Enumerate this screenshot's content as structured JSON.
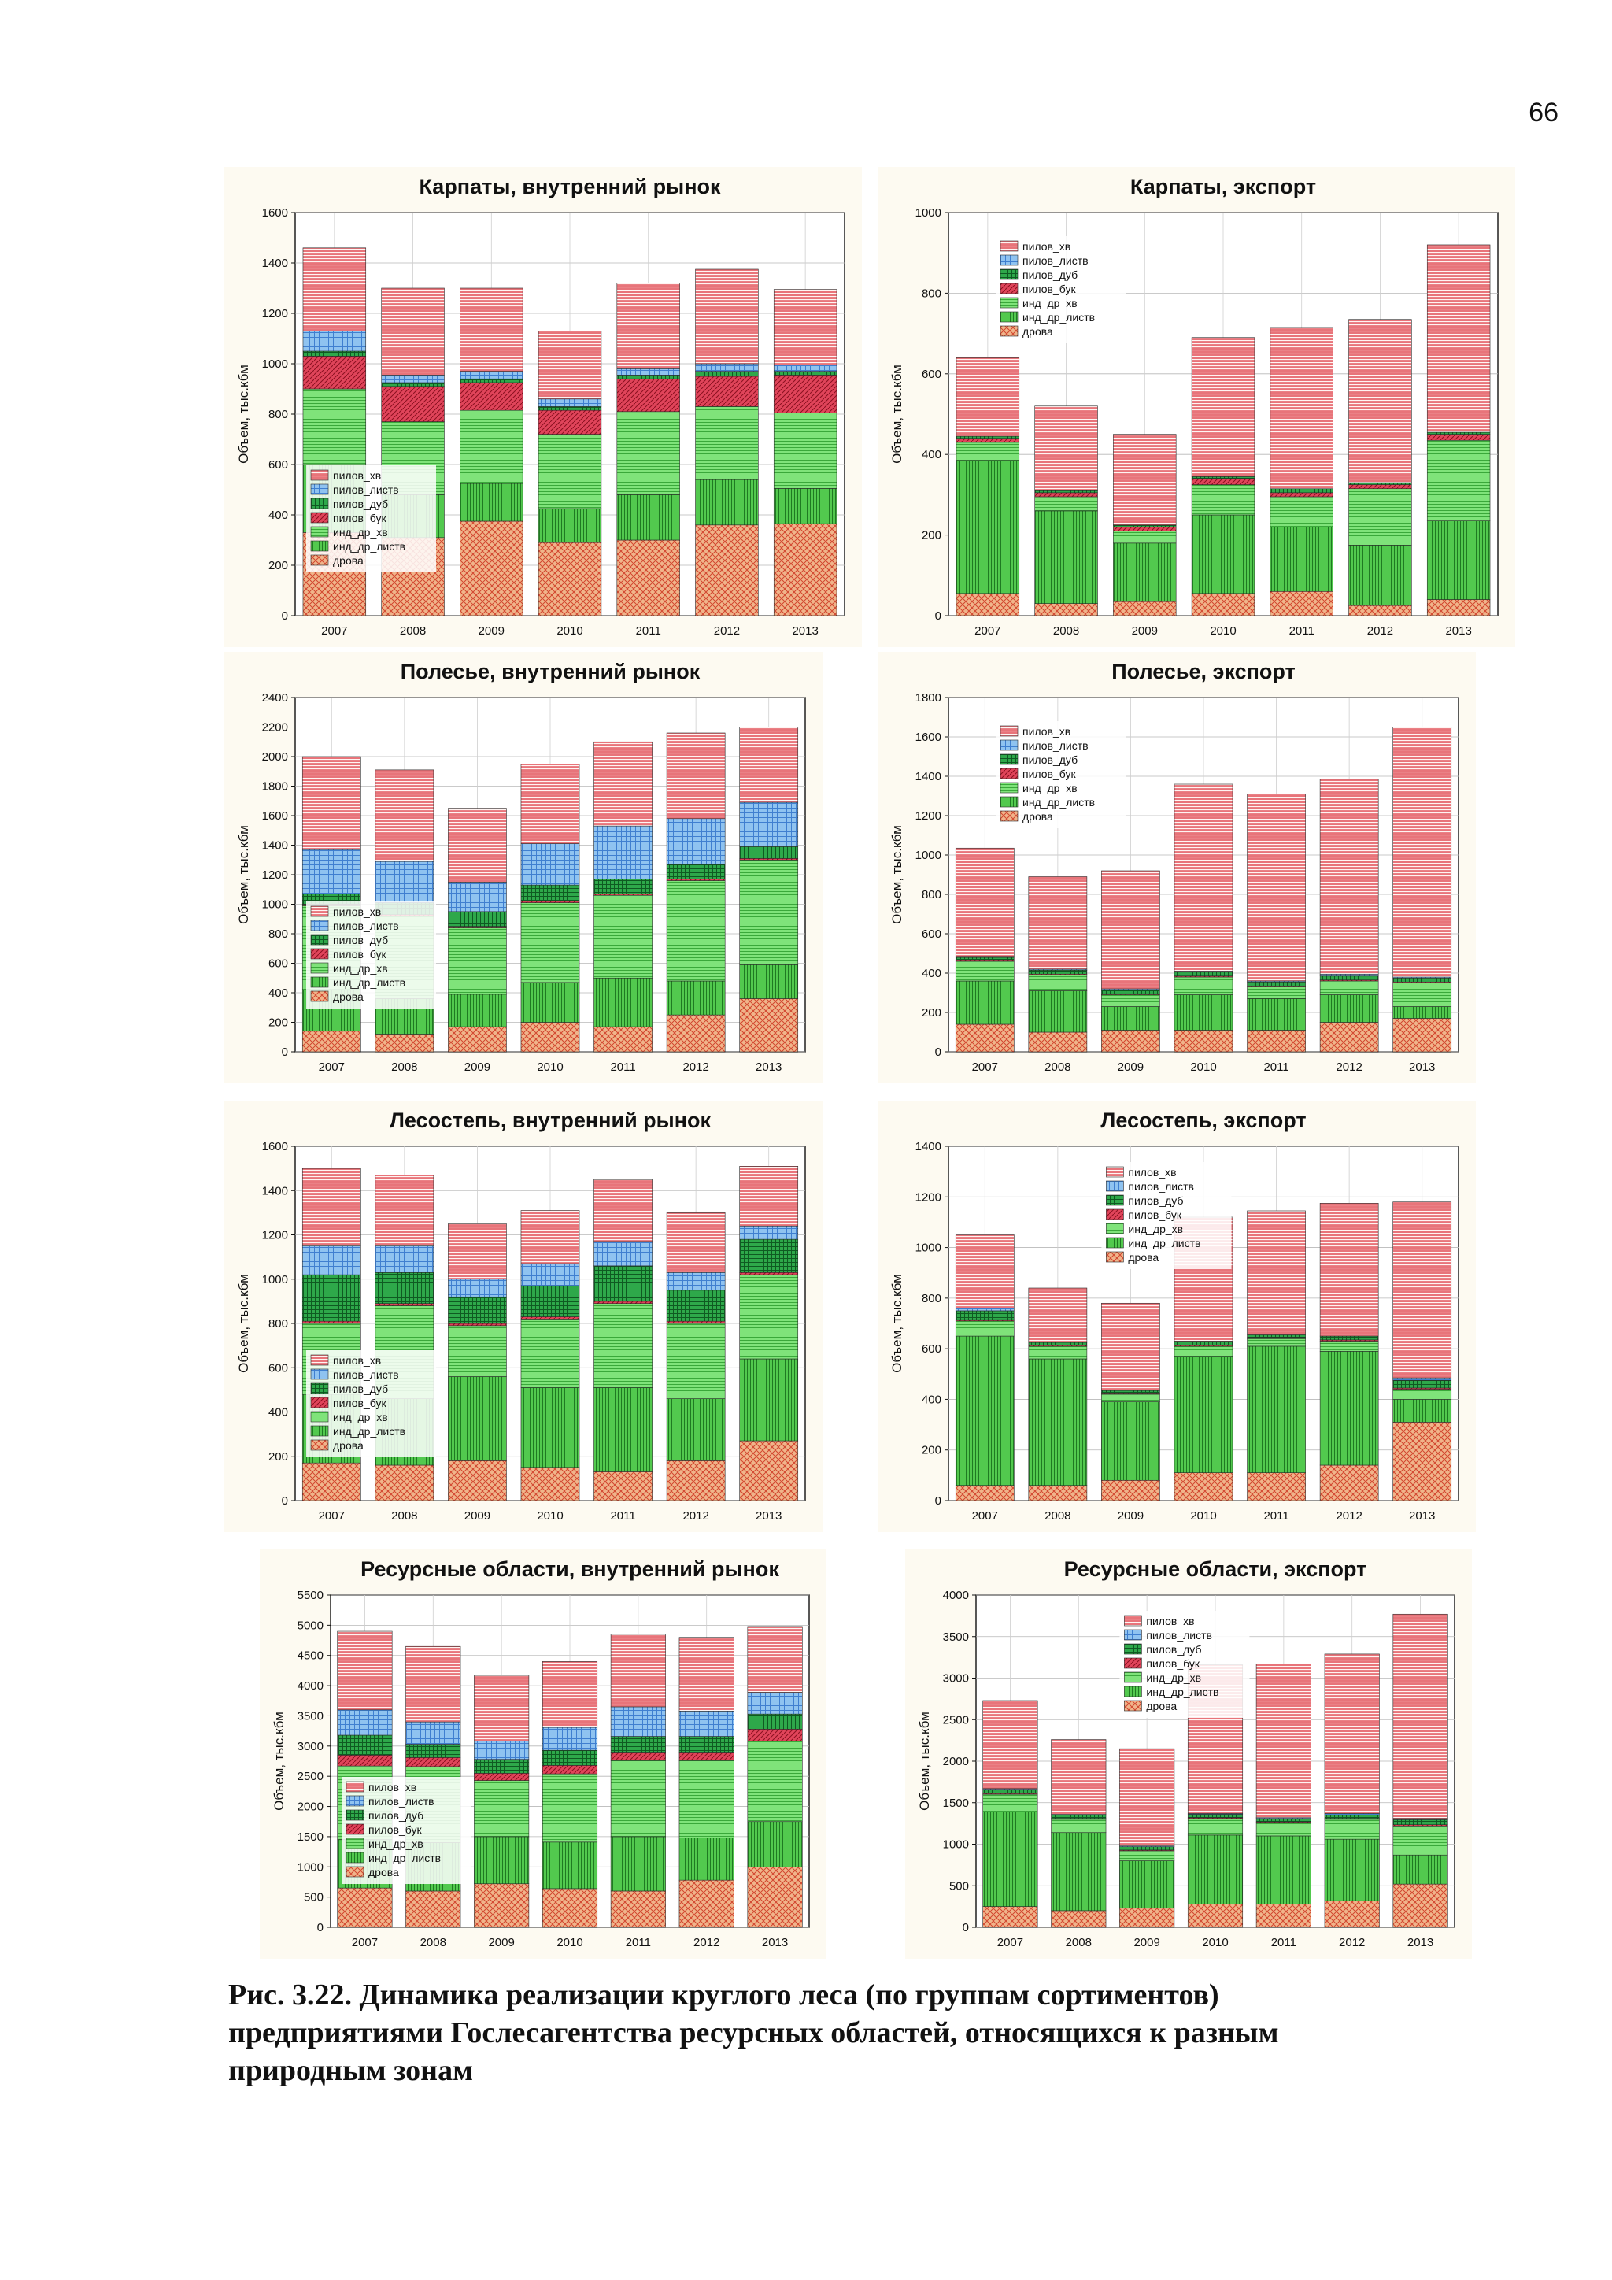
{
  "page_number": "66",
  "caption": {
    "line1": "Рис. 3.22. Динамика реализации круглого леса (по группам сортиментов)",
    "line2": "предприятиями Гослесагентства ресурсных областей, относящихся к разным",
    "line3": "природным зонам"
  },
  "colors": {
    "пилов_хв": "#e8747a",
    "пилов_листв": "#8fc3f0",
    "пилов_дуб": "#2ea84a",
    "пилов_бук": "#e0445a",
    "инд_др_хв": "#7fe37a",
    "инд_др_листв": "#52c94e",
    "дрова": "#f0b48a"
  },
  "chart_data": [
    {
      "type": "bar",
      "stacked": true,
      "title": "Карпаты, внутренний рынок",
      "ylabel": "Объем, тыс.кбм",
      "xlabel": "",
      "ylim": [
        0,
        1600
      ],
      "yticks": [
        0,
        200,
        400,
        600,
        800,
        1000,
        1200,
        1400,
        1600
      ],
      "grid": true,
      "legend_position": "bottom-left",
      "categories": [
        "2007",
        "2008",
        "2009",
        "2010",
        "2011",
        "2012",
        "2013"
      ],
      "series": [
        {
          "name": "дрова",
          "values": [
            330,
            310,
            375,
            290,
            300,
            360,
            365
          ]
        },
        {
          "name": "инд_др_листв",
          "values": [
            270,
            170,
            150,
            135,
            180,
            180,
            140
          ]
        },
        {
          "name": "инд_др_хв",
          "values": [
            300,
            290,
            290,
            295,
            330,
            290,
            300
          ]
        },
        {
          "name": "пилов_бук",
          "values": [
            130,
            140,
            110,
            95,
            130,
            120,
            150
          ]
        },
        {
          "name": "пилов_дуб",
          "values": [
            20,
            15,
            15,
            15,
            15,
            20,
            15
          ]
        },
        {
          "name": "пилов_листв",
          "values": [
            80,
            30,
            30,
            30,
            25,
            30,
            25
          ]
        },
        {
          "name": "пилов_хв",
          "values": [
            330,
            345,
            330,
            270,
            340,
            375,
            300
          ]
        }
      ]
    },
    {
      "type": "bar",
      "stacked": true,
      "title": "Карпаты, экспорт",
      "ylabel": "Объем, тыс.кбм",
      "xlabel": "",
      "ylim": [
        0,
        1000
      ],
      "yticks": [
        0,
        200,
        400,
        600,
        800,
        1000
      ],
      "grid": true,
      "legend_position": "top-left",
      "categories": [
        "2007",
        "2008",
        "2009",
        "2010",
        "2011",
        "2012",
        "2013"
      ],
      "series": [
        {
          "name": "дрова",
          "values": [
            55,
            30,
            35,
            55,
            60,
            25,
            40
          ]
        },
        {
          "name": "инд_др_листв",
          "values": [
            330,
            230,
            145,
            195,
            160,
            150,
            195
          ]
        },
        {
          "name": "инд_др_хв",
          "values": [
            45,
            35,
            30,
            75,
            75,
            140,
            200
          ]
        },
        {
          "name": "пилов_бук",
          "values": [
            10,
            10,
            10,
            15,
            10,
            10,
            15
          ]
        },
        {
          "name": "пилов_дуб",
          "values": [
            5,
            5,
            5,
            5,
            10,
            5,
            5
          ]
        },
        {
          "name": "пилов_листв",
          "values": [
            0,
            0,
            0,
            0,
            0,
            0,
            0
          ]
        },
        {
          "name": "пилов_хв",
          "values": [
            195,
            210,
            225,
            345,
            400,
            405,
            465
          ]
        }
      ]
    },
    {
      "type": "bar",
      "stacked": true,
      "title": "Полесье, внутренний рынок",
      "ylabel": "Объем, тыс.кбм",
      "xlabel": "",
      "ylim": [
        0,
        2400
      ],
      "yticks": [
        0,
        200,
        400,
        600,
        800,
        1000,
        1200,
        1400,
        1600,
        1800,
        2000,
        2200,
        2400
      ],
      "grid": true,
      "legend_position": "bottom-left",
      "categories": [
        "2007",
        "2008",
        "2009",
        "2010",
        "2011",
        "2012",
        "2013"
      ],
      "series": [
        {
          "name": "дрова",
          "values": [
            140,
            120,
            170,
            200,
            170,
            250,
            360
          ]
        },
        {
          "name": "инд_др_листв",
          "values": [
            280,
            240,
            220,
            270,
            330,
            230,
            230
          ]
        },
        {
          "name": "инд_др_хв",
          "values": [
            570,
            560,
            450,
            540,
            560,
            680,
            710
          ]
        },
        {
          "name": "пилов_бук",
          "values": [
            10,
            10,
            10,
            10,
            10,
            10,
            10
          ]
        },
        {
          "name": "пилов_дуб",
          "values": [
            70,
            80,
            100,
            110,
            100,
            100,
            80
          ]
        },
        {
          "name": "пилов_листв",
          "values": [
            300,
            280,
            200,
            280,
            360,
            310,
            300
          ]
        },
        {
          "name": "пилов_хв",
          "values": [
            630,
            620,
            500,
            540,
            570,
            580,
            510
          ]
        }
      ]
    },
    {
      "type": "bar",
      "stacked": true,
      "title": "Полесье, экспорт",
      "ylabel": "Объем, тыс.кбм",
      "xlabel": "",
      "ylim": [
        0,
        1800
      ],
      "yticks": [
        0,
        200,
        400,
        600,
        800,
        1000,
        1200,
        1400,
        1600,
        1800
      ],
      "grid": true,
      "legend_position": "top-left",
      "categories": [
        "2007",
        "2008",
        "2009",
        "2010",
        "2011",
        "2012",
        "2013"
      ],
      "series": [
        {
          "name": "дрова",
          "values": [
            140,
            100,
            110,
            110,
            110,
            150,
            170
          ]
        },
        {
          "name": "инд_др_листв",
          "values": [
            220,
            210,
            120,
            180,
            160,
            140,
            60
          ]
        },
        {
          "name": "инд_др_хв",
          "values": [
            100,
            80,
            60,
            90,
            60,
            70,
            120
          ]
        },
        {
          "name": "пилов_бук",
          "values": [
            5,
            5,
            5,
            5,
            5,
            5,
            5
          ]
        },
        {
          "name": "пилов_дуб",
          "values": [
            15,
            20,
            20,
            20,
            20,
            20,
            20
          ]
        },
        {
          "name": "пилов_листв",
          "values": [
            5,
            5,
            5,
            5,
            5,
            10,
            5
          ]
        },
        {
          "name": "пилов_хв",
          "values": [
            550,
            470,
            600,
            950,
            950,
            990,
            1270
          ]
        }
      ]
    },
    {
      "type": "bar",
      "stacked": true,
      "title": "Лесостепь, внутренний рынок",
      "ylabel": "Объем, тыс.кбм",
      "xlabel": "",
      "ylim": [
        0,
        1600
      ],
      "yticks": [
        0,
        200,
        400,
        600,
        800,
        1000,
        1200,
        1400,
        1600
      ],
      "grid": true,
      "legend_position": "bottom-left",
      "categories": [
        "2007",
        "2008",
        "2009",
        "2010",
        "2011",
        "2012",
        "2013"
      ],
      "series": [
        {
          "name": "дрова",
          "values": [
            170,
            160,
            180,
            150,
            130,
            180,
            270
          ]
        },
        {
          "name": "инд_др_листв",
          "values": [
            310,
            300,
            380,
            360,
            380,
            280,
            370
          ]
        },
        {
          "name": "инд_др_хв",
          "values": [
            320,
            420,
            230,
            310,
            380,
            340,
            380
          ]
        },
        {
          "name": "пилов_бук",
          "values": [
            10,
            10,
            10,
            10,
            10,
            10,
            10
          ]
        },
        {
          "name": "пилов_дуб",
          "values": [
            210,
            140,
            120,
            140,
            160,
            140,
            150
          ]
        },
        {
          "name": "пилов_листв",
          "values": [
            130,
            120,
            80,
            100,
            110,
            80,
            60
          ]
        },
        {
          "name": "пилов_хв",
          "values": [
            350,
            320,
            250,
            240,
            280,
            270,
            270
          ]
        }
      ]
    },
    {
      "type": "bar",
      "stacked": true,
      "title": "Лесостепь, экспорт",
      "ylabel": "Объем, тыс.кбм",
      "xlabel": "",
      "ylim": [
        0,
        1400
      ],
      "yticks": [
        0,
        200,
        400,
        600,
        800,
        1000,
        1200,
        1400
      ],
      "grid": true,
      "legend_position": "top-center",
      "categories": [
        "2007",
        "2008",
        "2009",
        "2010",
        "2011",
        "2012",
        "2013"
      ],
      "series": [
        {
          "name": "дрова",
          "values": [
            60,
            60,
            80,
            110,
            110,
            140,
            310
          ]
        },
        {
          "name": "инд_др_листв",
          "values": [
            590,
            500,
            310,
            460,
            500,
            450,
            90
          ]
        },
        {
          "name": "инд_др_хв",
          "values": [
            60,
            50,
            30,
            40,
            30,
            40,
            40
          ]
        },
        {
          "name": "пилов_бук",
          "values": [
            5,
            5,
            5,
            5,
            5,
            5,
            5
          ]
        },
        {
          "name": "пилов_дуб",
          "values": [
            35,
            10,
            10,
            15,
            10,
            15,
            30
          ]
        },
        {
          "name": "пилов_листв",
          "values": [
            10,
            0,
            0,
            0,
            0,
            0,
            10
          ]
        },
        {
          "name": "пилов_хв",
          "values": [
            290,
            215,
            345,
            490,
            490,
            525,
            695
          ]
        }
      ]
    },
    {
      "type": "bar",
      "stacked": true,
      "title": "Ресурсные области, внутренний рынок",
      "ylabel": "Объем, тыс.кбм",
      "xlabel": "",
      "ylim": [
        0,
        5500
      ],
      "yticks": [
        0,
        500,
        1000,
        1500,
        2000,
        2500,
        3000,
        3500,
        4000,
        4500,
        5000,
        5500
      ],
      "grid": true,
      "legend_position": "bottom-left",
      "categories": [
        "2007",
        "2008",
        "2009",
        "2010",
        "2011",
        "2012",
        "2013"
      ],
      "series": [
        {
          "name": "дрова",
          "values": [
            650,
            600,
            720,
            640,
            600,
            780,
            1000
          ]
        },
        {
          "name": "инд_др_листв",
          "values": [
            800,
            800,
            780,
            770,
            900,
            700,
            750
          ]
        },
        {
          "name": "инд_др_хв",
          "values": [
            1220,
            1260,
            930,
            1130,
            1260,
            1280,
            1330
          ]
        },
        {
          "name": "пилов_бук",
          "values": [
            180,
            150,
            120,
            140,
            140,
            140,
            200
          ]
        },
        {
          "name": "пилов_дуб",
          "values": [
            330,
            220,
            230,
            250,
            260,
            260,
            250
          ]
        },
        {
          "name": "пилов_листв",
          "values": [
            420,
            370,
            300,
            380,
            490,
            420,
            360
          ]
        },
        {
          "name": "пилов_хв",
          "values": [
            1300,
            1250,
            1090,
            1090,
            1200,
            1220,
            1090
          ]
        }
      ]
    },
    {
      "type": "bar",
      "stacked": true,
      "title": "Ресурсные области, экспорт",
      "ylabel": "Объем, тыс.кбм",
      "xlabel": "",
      "ylim": [
        0,
        4000
      ],
      "yticks": [
        0,
        500,
        1000,
        1500,
        2000,
        2500,
        3000,
        3500,
        4000
      ],
      "grid": true,
      "legend_position": "top-center",
      "categories": [
        "2007",
        "2008",
        "2009",
        "2010",
        "2011",
        "2012",
        "2013"
      ],
      "series": [
        {
          "name": "дрова",
          "values": [
            250,
            200,
            230,
            280,
            280,
            320,
            520
          ]
        },
        {
          "name": "инд_др_листв",
          "values": [
            1140,
            940,
            570,
            830,
            820,
            740,
            350
          ]
        },
        {
          "name": "инд_др_хв",
          "values": [
            210,
            160,
            120,
            200,
            160,
            240,
            350
          ]
        },
        {
          "name": "пилов_бук",
          "values": [
            10,
            10,
            10,
            10,
            10,
            10,
            15
          ]
        },
        {
          "name": "пилов_дуб",
          "values": [
            50,
            40,
            40,
            40,
            40,
            40,
            60
          ]
        },
        {
          "name": "пилов_листв",
          "values": [
            10,
            10,
            10,
            10,
            10,
            20,
            15
          ]
        },
        {
          "name": "пилов_хв",
          "values": [
            1060,
            900,
            1170,
            1790,
            1850,
            1920,
            2460
          ]
        }
      ]
    }
  ]
}
